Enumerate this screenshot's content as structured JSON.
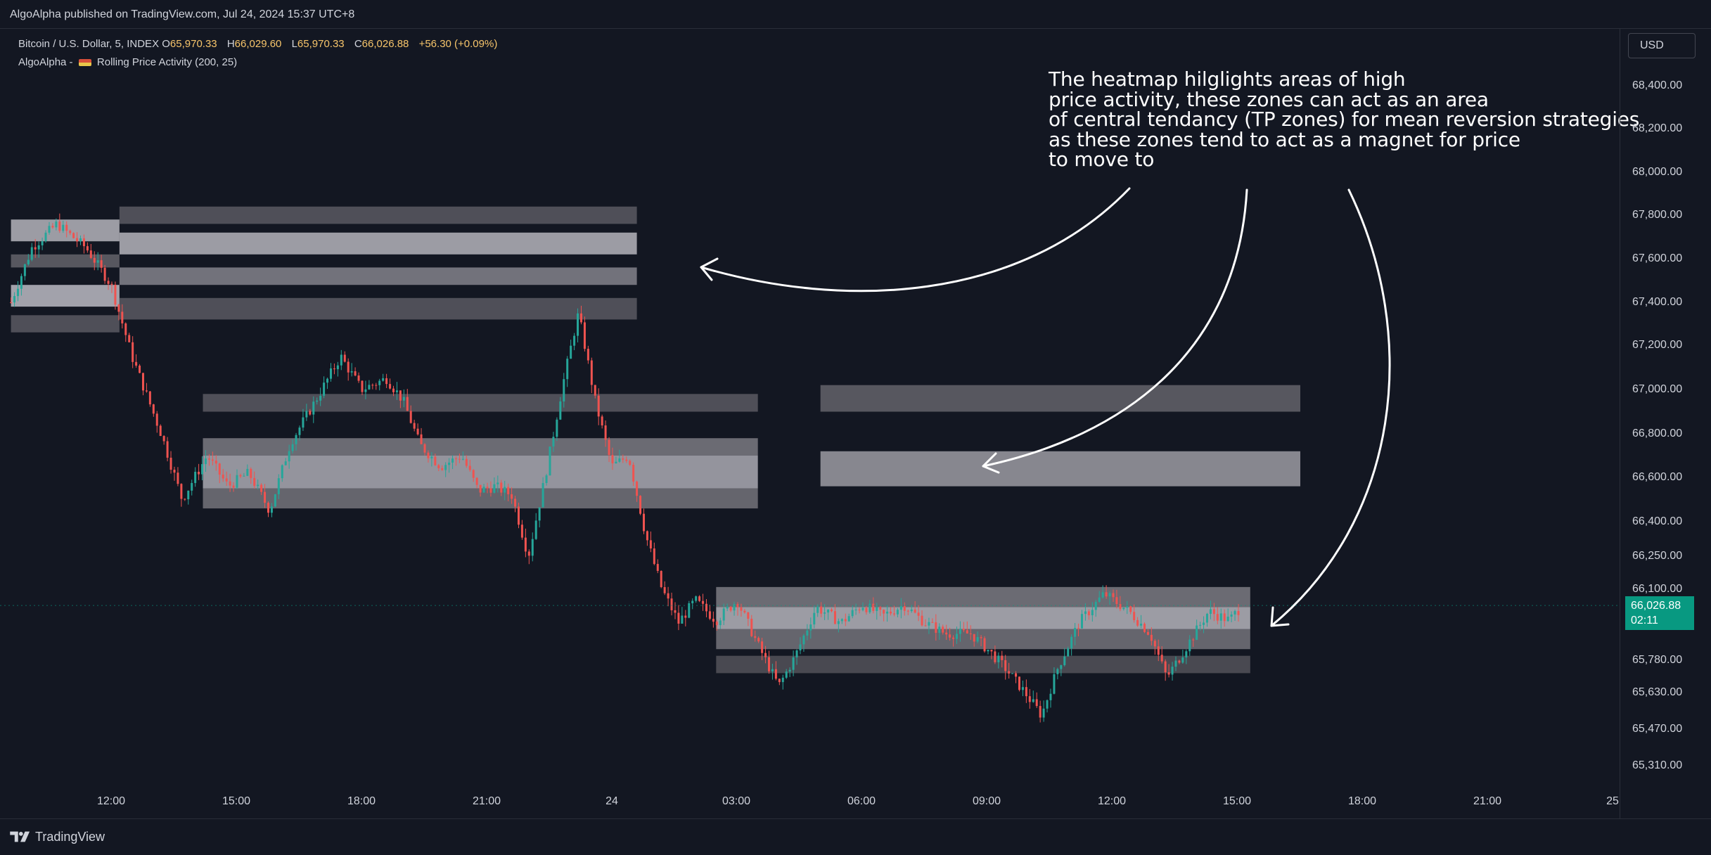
{
  "publisher_line": "AlgoAlpha published on TradingView.com, Jul 24, 2024 15:37 UTC+8",
  "legend": {
    "symbol": "Bitcoin / U.S. Dollar, 5, INDEX",
    "open_key": "O",
    "open": "65,970.33",
    "high_key": "H",
    "high": "66,029.60",
    "low_key": "L",
    "low": "65,970.33",
    "close_key": "C",
    "close": "66,026.88",
    "change": "+56.30 (+0.09%)",
    "indicator_prefix": "AlgoAlpha -",
    "indicator_name": "Rolling Price Activity (200, 25)"
  },
  "currency_button": "USD",
  "last_price": {
    "price": "66,026.88",
    "countdown": "02:11",
    "color": "#089981"
  },
  "annotation_lines": [
    "The heatmap hilglights areas of high",
    "price activity, these zones can act as an area",
    "of central tendancy (TP zones) for mean reversion strategies",
    "as these zones tend to act as a magnet for price",
    "to move to"
  ],
  "footer_brand": "TradingView",
  "chart_data": {
    "type": "candlestick",
    "symbol": "Bitcoin / U.S. Dollar, 5, INDEX",
    "price_ticks": [
      "68,400.00",
      "68,200.00",
      "68,000.00",
      "67,800.00",
      "67,600.00",
      "67,400.00",
      "67,200.00",
      "67,000.00",
      "66,800.00",
      "66,600.00",
      "66,400.00",
      "66,250.00",
      "66,100.00",
      "65,780.00",
      "65,630.00",
      "65,470.00",
      "65,310.00"
    ],
    "time_ticks": [
      "12:00",
      "15:00",
      "18:00",
      "21:00",
      "24",
      "03:00",
      "06:00",
      "09:00",
      "12:00",
      "15:00",
      "18:00",
      "21:00",
      "25"
    ],
    "ylim": [
      65200,
      68500
    ],
    "x_range_hours": [
      9.6,
      33.5
    ],
    "up_color": "#26a69a",
    "down_color": "#ef5350",
    "price_path": [
      [
        9.6,
        67400
      ],
      [
        10.1,
        67650
      ],
      [
        10.7,
        67760
      ],
      [
        11.4,
        67650
      ],
      [
        12.0,
        67480
      ],
      [
        12.5,
        67150
      ],
      [
        13.2,
        66800
      ],
      [
        13.7,
        66500
      ],
      [
        14.3,
        66700
      ],
      [
        14.8,
        66560
      ],
      [
        15.3,
        66620
      ],
      [
        15.8,
        66450
      ],
      [
        16.3,
        66760
      ],
      [
        16.9,
        66950
      ],
      [
        17.5,
        67150
      ],
      [
        18.0,
        67000
      ],
      [
        18.6,
        67050
      ],
      [
        19.0,
        66950
      ],
      [
        19.4,
        66750
      ],
      [
        19.9,
        66650
      ],
      [
        20.4,
        66700
      ],
      [
        20.8,
        66540
      ],
      [
        21.2,
        66560
      ],
      [
        21.6,
        66520
      ],
      [
        22.0,
        66250
      ],
      [
        22.4,
        66600
      ],
      [
        22.8,
        67000
      ],
      [
        23.2,
        67350
      ],
      [
        23.6,
        66950
      ],
      [
        24.0,
        66650
      ],
      [
        24.4,
        66700
      ],
      [
        24.8,
        66350
      ],
      [
        25.2,
        66100
      ],
      [
        25.6,
        65950
      ],
      [
        26.0,
        66050
      ],
      [
        26.5,
        65960
      ],
      [
        27.0,
        66050
      ],
      [
        27.5,
        65850
      ],
      [
        28.0,
        65660
      ],
      [
        28.4,
        65800
      ],
      [
        28.9,
        66020
      ],
      [
        29.5,
        65950
      ],
      [
        30.0,
        66030
      ],
      [
        30.5,
        65980
      ],
      [
        31.0,
        66030
      ],
      [
        31.5,
        65950
      ],
      [
        32.0,
        65900
      ],
      [
        32.6,
        65900
      ],
      [
        33.0,
        65830
      ],
      [
        33.4,
        65750
      ],
      [
        33.9,
        65630
      ],
      [
        34.3,
        65530
      ],
      [
        34.7,
        65750
      ],
      [
        35.2,
        65950
      ],
      [
        35.8,
        66080
      ],
      [
        36.4,
        66000
      ],
      [
        36.9,
        65900
      ],
      [
        37.3,
        65700
      ],
      [
        37.8,
        65850
      ],
      [
        38.3,
        66000
      ],
      [
        38.8,
        65960
      ],
      [
        39.1,
        66026
      ]
    ],
    "heatmap_bands": [
      {
        "x": [
          9.6,
          12.2
        ],
        "y": [
          67680,
          67780
        ],
        "intensity": 0.85
      },
      {
        "x": [
          9.6,
          12.2
        ],
        "y": [
          67380,
          67480
        ],
        "intensity": 0.9
      },
      {
        "x": [
          9.6,
          12.2
        ],
        "y": [
          67560,
          67620
        ],
        "intensity": 0.35
      },
      {
        "x": [
          9.6,
          12.2
        ],
        "y": [
          67260,
          67340
        ],
        "intensity": 0.3
      },
      {
        "x": [
          12.2,
          24.6
        ],
        "y": [
          67620,
          67720
        ],
        "intensity": 0.85
      },
      {
        "x": [
          12.2,
          24.6
        ],
        "y": [
          67480,
          67560
        ],
        "intensity": 0.55
      },
      {
        "x": [
          12.2,
          24.6
        ],
        "y": [
          67760,
          67840
        ],
        "intensity": 0.3
      },
      {
        "x": [
          12.2,
          24.6
        ],
        "y": [
          67320,
          67420
        ],
        "intensity": 0.3
      },
      {
        "x": [
          14.2,
          27.5
        ],
        "y": [
          66550,
          66700
        ],
        "intensity": 0.8
      },
      {
        "x": [
          14.2,
          27.5
        ],
        "y": [
          66700,
          66780
        ],
        "intensity": 0.5
      },
      {
        "x": [
          14.2,
          27.5
        ],
        "y": [
          66460,
          66550
        ],
        "intensity": 0.45
      },
      {
        "x": [
          14.2,
          27.5
        ],
        "y": [
          66900,
          66980
        ],
        "intensity": 0.3
      },
      {
        "x": [
          29.0,
          40.5
        ],
        "y": [
          66560,
          66720
        ],
        "intensity": 0.7
      },
      {
        "x": [
          29.0,
          40.5
        ],
        "y": [
          66900,
          67020
        ],
        "intensity": 0.35
      },
      {
        "x": [
          26.5,
          39.3
        ],
        "y": [
          65920,
          66020
        ],
        "intensity": 0.85
      },
      {
        "x": [
          26.5,
          39.3
        ],
        "y": [
          66020,
          66110
        ],
        "intensity": 0.5
      },
      {
        "x": [
          26.5,
          39.3
        ],
        "y": [
          65830,
          65920
        ],
        "intensity": 0.45
      },
      {
        "x": [
          26.5,
          39.3
        ],
        "y": [
          65720,
          65800
        ],
        "intensity": 0.25
      }
    ],
    "arrows": [
      {
        "from": [
          1606,
          268
        ],
        "to": [
          997,
          380
        ]
      },
      {
        "from": [
          1773,
          270
        ],
        "to": [
          1398,
          663
        ]
      },
      {
        "from": [
          1918,
          270
        ],
        "to": [
          1808,
          890
        ]
      }
    ],
    "grid": false,
    "legend_position": "top-left"
  }
}
